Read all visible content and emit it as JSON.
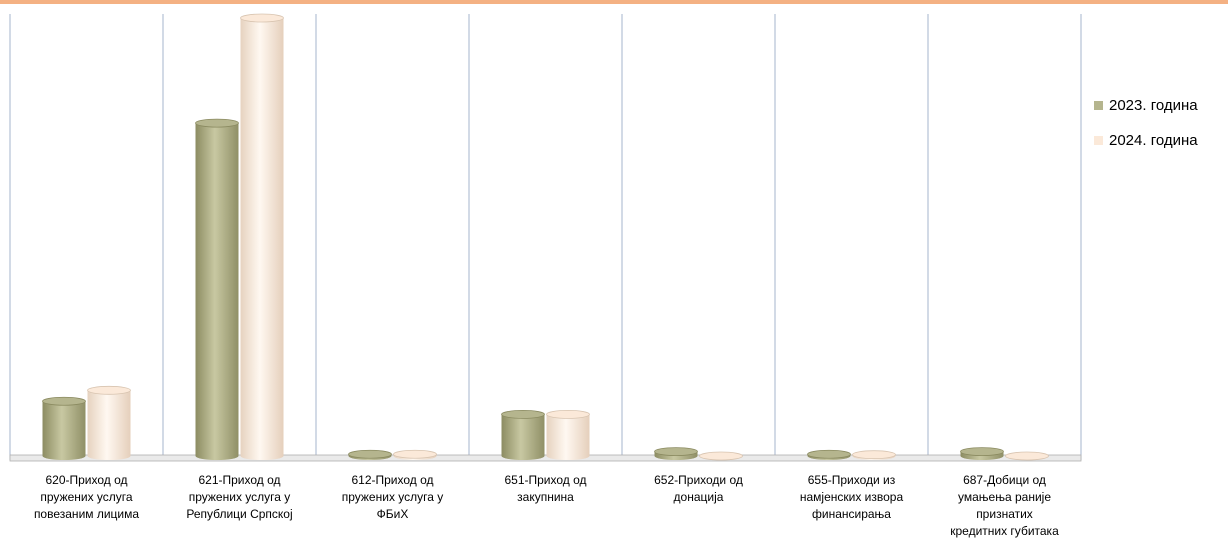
{
  "colors": {
    "frame": "#f4b183",
    "grid": "#a6b4cc",
    "series_2023": "#b5b58e",
    "series_2024": "#fbe9d9"
  },
  "chart_data": {
    "type": "bar",
    "categories": [
      "620-Приход од\nпружених услуга\nповезаним лицима",
      "621-Приход од\nпружених услуга у\nРепублици Српској",
      "612-Приход од\nпружених услуга у\nФБиХ",
      "651-Приход од\nзакупнина",
      "652-Приходи од\nдонација",
      "655-Приходи из\nнамјенских извора\nфинансирања",
      "687-Добици од\nумањења раније\nпризнатих\nкредитних губитака"
    ],
    "series": [
      {
        "name": "2023. година",
        "values": [
          12.5,
          76,
          0.4,
          9.5,
          1,
          0.4,
          1
        ]
      },
      {
        "name": "2024. година",
        "values": [
          15,
          100,
          0.4,
          9.5,
          0,
          0.3,
          0
        ]
      }
    ],
    "legend_position": "right",
    "grid": true,
    "ylim": [
      0,
      100
    ]
  }
}
